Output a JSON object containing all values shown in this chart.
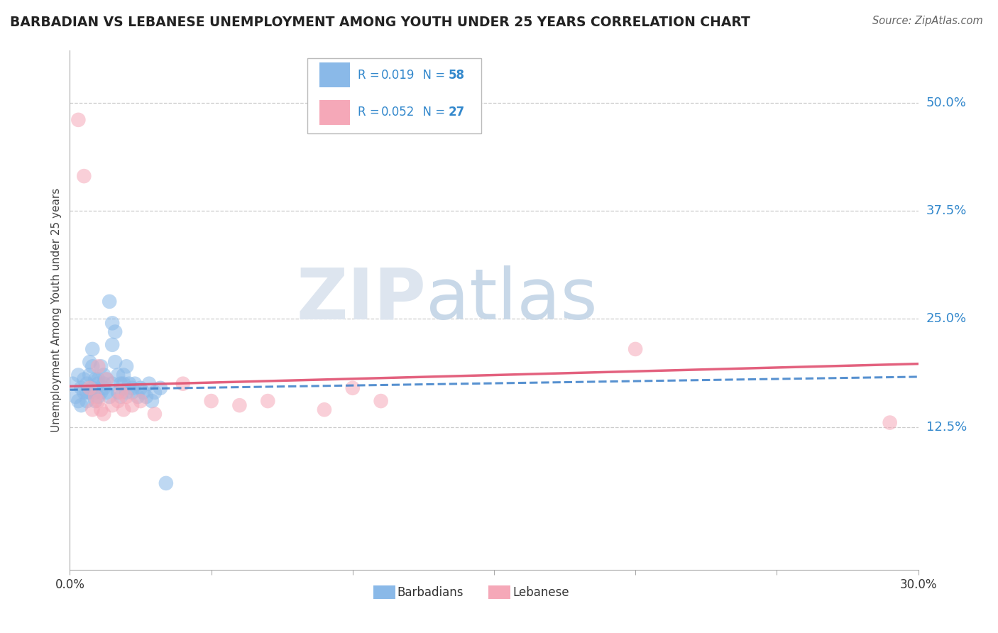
{
  "title": "BARBADIAN VS LEBANESE UNEMPLOYMENT AMONG YOUTH UNDER 25 YEARS CORRELATION CHART",
  "source": "Source: ZipAtlas.com",
  "ylabel": "Unemployment Among Youth under 25 years",
  "ytick_labels": [
    "50.0%",
    "37.5%",
    "25.0%",
    "12.5%"
  ],
  "ytick_values": [
    0.5,
    0.375,
    0.25,
    0.125
  ],
  "xlim": [
    0.0,
    0.3
  ],
  "ylim": [
    -0.04,
    0.56
  ],
  "barbadian_R": 0.019,
  "barbadian_N": 58,
  "lebanese_R": 0.052,
  "lebanese_N": 27,
  "barbadian_color": "#8ab9e8",
  "lebanese_color": "#f5a8b8",
  "trend_barbadian_color": "#3a7ec8",
  "trend_lebanese_color": "#e05070",
  "label_color": "#3388cc",
  "watermark_zip": "ZIP",
  "watermark_atlas": "atlas",
  "barbadian_x": [
    0.001,
    0.002,
    0.003,
    0.003,
    0.004,
    0.004,
    0.005,
    0.005,
    0.006,
    0.006,
    0.006,
    0.007,
    0.007,
    0.007,
    0.008,
    0.008,
    0.008,
    0.009,
    0.009,
    0.009,
    0.01,
    0.01,
    0.01,
    0.011,
    0.011,
    0.012,
    0.012,
    0.012,
    0.013,
    0.013,
    0.014,
    0.014,
    0.015,
    0.015,
    0.015,
    0.016,
    0.016,
    0.017,
    0.017,
    0.018,
    0.018,
    0.019,
    0.019,
    0.02,
    0.02,
    0.021,
    0.022,
    0.022,
    0.023,
    0.024,
    0.025,
    0.026,
    0.027,
    0.028,
    0.029,
    0.03,
    0.032,
    0.034
  ],
  "barbadian_y": [
    0.175,
    0.16,
    0.185,
    0.155,
    0.17,
    0.15,
    0.165,
    0.18,
    0.165,
    0.175,
    0.155,
    0.2,
    0.185,
    0.165,
    0.215,
    0.195,
    0.17,
    0.18,
    0.165,
    0.155,
    0.175,
    0.16,
    0.18,
    0.195,
    0.165,
    0.175,
    0.185,
    0.17,
    0.165,
    0.18,
    0.27,
    0.16,
    0.245,
    0.22,
    0.175,
    0.235,
    0.2,
    0.185,
    0.165,
    0.175,
    0.16,
    0.185,
    0.175,
    0.195,
    0.165,
    0.175,
    0.17,
    0.165,
    0.175,
    0.16,
    0.17,
    0.165,
    0.16,
    0.175,
    0.155,
    0.165,
    0.17,
    0.06
  ],
  "lebanese_x": [
    0.003,
    0.005,
    0.007,
    0.008,
    0.009,
    0.01,
    0.01,
    0.011,
    0.012,
    0.013,
    0.015,
    0.017,
    0.018,
    0.019,
    0.02,
    0.022,
    0.025,
    0.03,
    0.04,
    0.05,
    0.06,
    0.07,
    0.09,
    0.1,
    0.11,
    0.2,
    0.29
  ],
  "lebanese_y": [
    0.48,
    0.415,
    0.17,
    0.145,
    0.16,
    0.195,
    0.155,
    0.145,
    0.14,
    0.18,
    0.15,
    0.155,
    0.165,
    0.145,
    0.16,
    0.15,
    0.155,
    0.14,
    0.175,
    0.155,
    0.15,
    0.155,
    0.145,
    0.17,
    0.155,
    0.215,
    0.13
  ],
  "trend_barb_x0": 0.0,
  "trend_barb_y0": 0.168,
  "trend_barb_x1": 0.3,
  "trend_barb_y1": 0.183,
  "trend_leb_x0": 0.0,
  "trend_leb_y0": 0.172,
  "trend_leb_x1": 0.3,
  "trend_leb_y1": 0.198
}
